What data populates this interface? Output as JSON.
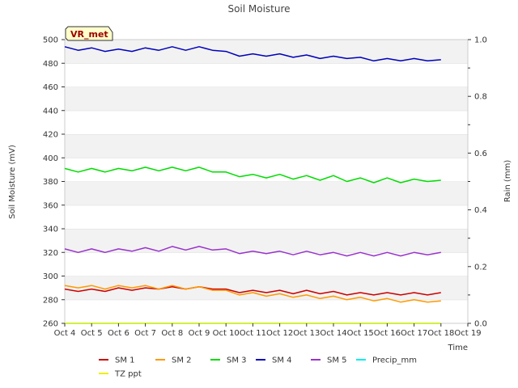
{
  "chart_data": {
    "type": "line",
    "title": "Soil Moisture",
    "xlabel": "Time",
    "ylabel": "Soil Moisture (mV)",
    "y2label": "Rain (mm)",
    "badge": "VR_met",
    "xlim": [
      4,
      19
    ],
    "ylim": [
      260,
      500
    ],
    "y2lim": [
      0.0,
      1.0
    ],
    "x_ticks": [
      4,
      5,
      6,
      7,
      8,
      9,
      10,
      11,
      12,
      13,
      14,
      15,
      16,
      17,
      18,
      19
    ],
    "x_tick_labels": [
      "Oct 4",
      "Oct 5",
      "Oct 6",
      "Oct 7",
      "Oct 8",
      "Oct 9",
      "Oct 10",
      "Oct 11",
      "Oct 12",
      "Oct 13",
      "Oct 14",
      "Oct 15",
      "Oct 16",
      "Oct 17",
      "Oct 18",
      "Oct 19"
    ],
    "y_ticks": [
      260,
      280,
      300,
      320,
      340,
      360,
      380,
      400,
      420,
      440,
      460,
      480,
      500
    ],
    "y_tick_labels": [
      "260",
      "280",
      "300",
      "320",
      "340",
      "360",
      "380",
      "400",
      "420",
      "440",
      "460",
      "480",
      "500"
    ],
    "y2_ticks": [
      0.0,
      0.2,
      0.4,
      0.6,
      0.8,
      1.0
    ],
    "y2_tick_labels": [
      "0.0",
      "0.2",
      "0.4",
      "0.6",
      "0.8",
      "1.0"
    ],
    "y2_minor_ticks": [
      0.1,
      0.3,
      0.5,
      0.7,
      0.9
    ],
    "grid": "horizontal-bands",
    "legend_position": "bottom",
    "x": [
      4.0,
      4.5,
      5.0,
      5.5,
      6.0,
      6.5,
      7.0,
      7.5,
      8.0,
      8.5,
      9.0,
      9.5,
      10.0,
      10.5,
      11.0,
      11.5,
      12.0,
      12.5,
      13.0,
      13.5,
      14.0,
      14.5,
      15.0,
      15.5,
      16.0,
      16.5,
      17.0,
      17.5,
      18.0
    ],
    "series": [
      {
        "name": "SM 1",
        "color": "#cc0000",
        "axis": "left",
        "values": [
          289,
          287,
          289,
          287,
          290,
          288,
          290,
          289,
          291,
          289,
          291,
          289,
          289,
          286,
          288,
          286,
          288,
          285,
          288,
          285,
          287,
          284,
          286,
          284,
          286,
          284,
          286,
          284,
          286
        ]
      },
      {
        "name": "SM 2",
        "color": "#ff9900",
        "axis": "left",
        "values": [
          292,
          290,
          292,
          289,
          292,
          290,
          292,
          289,
          292,
          289,
          291,
          288,
          288,
          284,
          286,
          283,
          285,
          282,
          284,
          281,
          283,
          280,
          282,
          279,
          281,
          278,
          280,
          278,
          279
        ]
      },
      {
        "name": "SM 3",
        "color": "#00dd00",
        "axis": "left",
        "values": [
          391,
          388,
          391,
          388,
          391,
          389,
          392,
          389,
          392,
          389,
          392,
          388,
          388,
          384,
          386,
          383,
          386,
          382,
          385,
          381,
          385,
          380,
          383,
          379,
          383,
          379,
          382,
          380,
          381
        ]
      },
      {
        "name": "SM 4",
        "color": "#0000bb",
        "axis": "left",
        "values": [
          494,
          491,
          493,
          490,
          492,
          490,
          493,
          491,
          494,
          491,
          494,
          491,
          490,
          486,
          488,
          486,
          488,
          485,
          487,
          484,
          486,
          484,
          485,
          482,
          484,
          482,
          484,
          482,
          483
        ]
      },
      {
        "name": "SM 5",
        "color": "#9933cc",
        "axis": "left",
        "values": [
          323,
          320,
          323,
          320,
          323,
          321,
          324,
          321,
          325,
          322,
          325,
          322,
          323,
          319,
          321,
          319,
          321,
          318,
          321,
          318,
          320,
          317,
          320,
          317,
          320,
          317,
          320,
          318,
          320
        ]
      },
      {
        "name": "Precip_mm",
        "color": "#00eeee",
        "axis": "right",
        "values": [
          0,
          0,
          0,
          0,
          0,
          0,
          0,
          0,
          0,
          0,
          0,
          0,
          0,
          0,
          0,
          0,
          0,
          0,
          0,
          0,
          0,
          0,
          0,
          0,
          0,
          0,
          0,
          0,
          0
        ]
      },
      {
        "name": "TZ ppt",
        "color": "#eeee00",
        "axis": "left",
        "values": [
          260,
          260,
          260,
          260,
          260,
          260,
          260,
          260,
          260,
          260,
          260,
          260,
          260,
          260,
          260,
          260,
          260,
          260,
          260,
          260,
          260,
          260,
          260,
          260,
          260,
          260,
          260,
          260,
          260
        ]
      }
    ]
  }
}
